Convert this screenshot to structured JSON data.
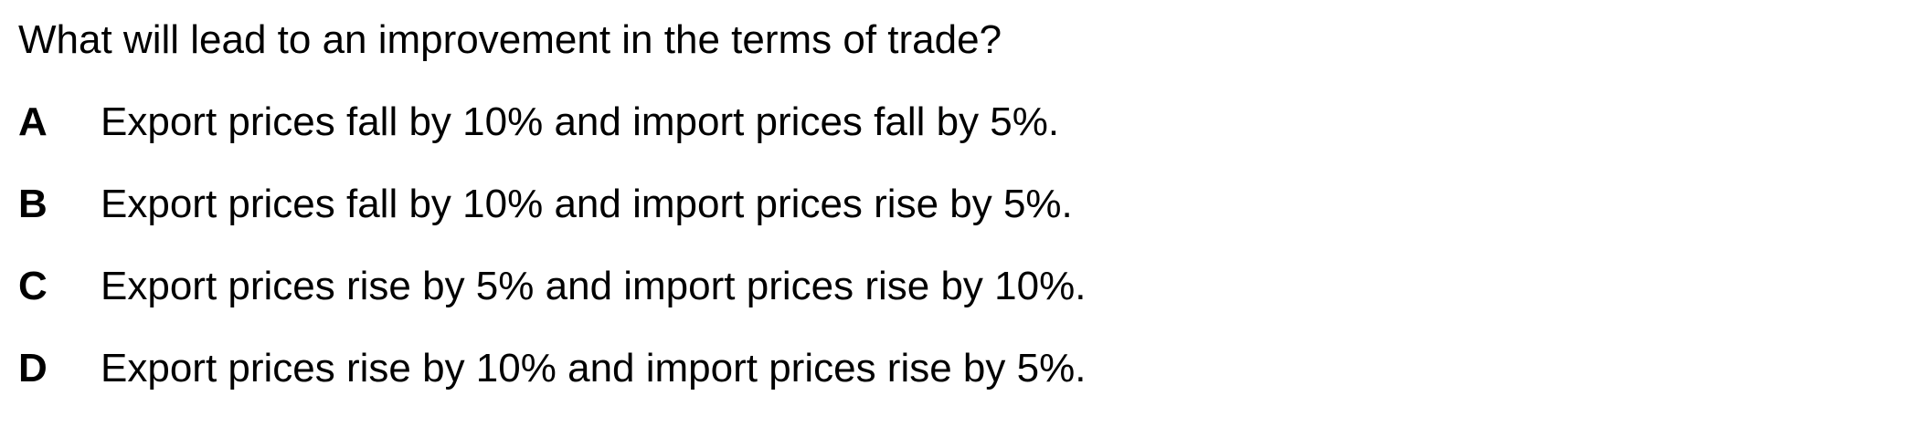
{
  "question": {
    "text": "What will lead to an improvement in the terms of trade?"
  },
  "options": [
    {
      "letter": "A",
      "text": "Export prices fall by 10% and import prices fall by 5%."
    },
    {
      "letter": "B",
      "text": "Export prices fall by 10% and import prices rise by 5%."
    },
    {
      "letter": "C",
      "text": "Export prices rise by 5% and import prices rise by 10%."
    },
    {
      "letter": "D",
      "text": "Export prices rise by 10% and import prices rise by 5%."
    }
  ]
}
